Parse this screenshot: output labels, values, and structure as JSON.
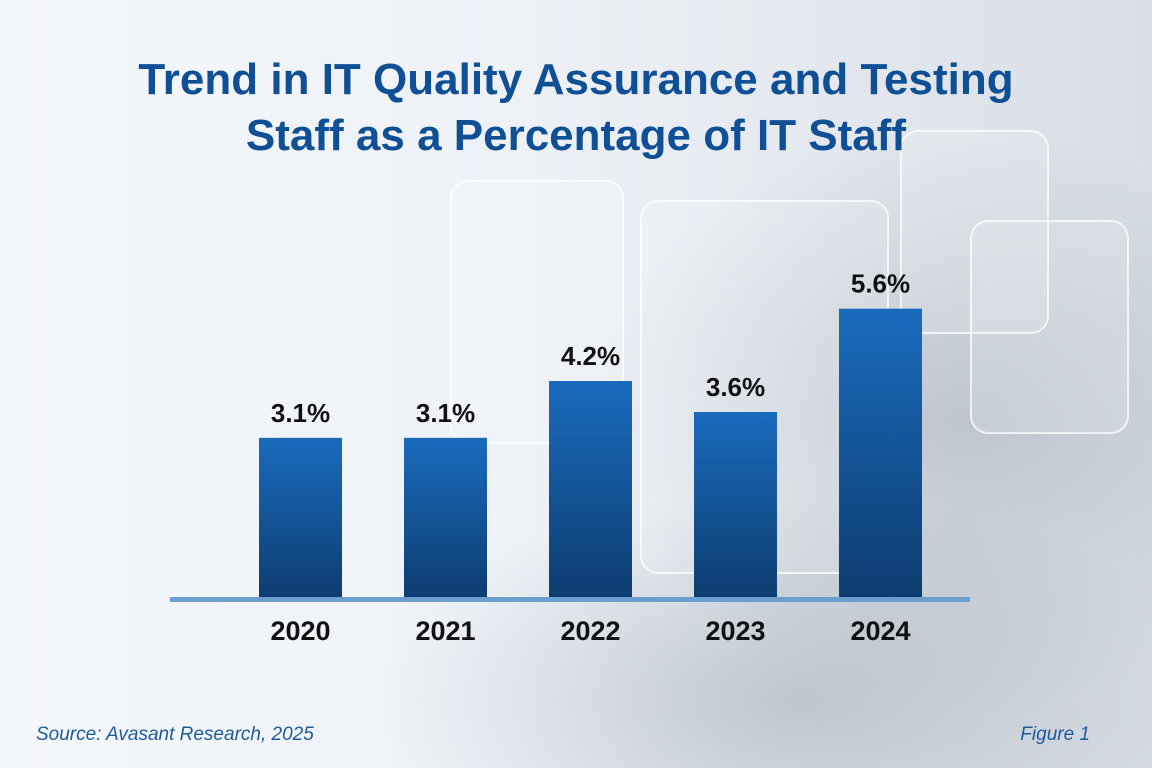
{
  "chart_data": {
    "type": "bar",
    "title": "Trend in IT Quality Assurance and Testing Staff as a Percentage of IT Staff",
    "categories": [
      "2020",
      "2021",
      "2022",
      "2023",
      "2024"
    ],
    "values": [
      3.1,
      3.1,
      4.2,
      3.6,
      5.6
    ],
    "data_labels": [
      "3.1%",
      "3.1%",
      "4.2%",
      "3.6%",
      "5.6%"
    ],
    "unit": "%",
    "xlabel": "",
    "ylabel": "",
    "ylim": [
      0,
      6
    ],
    "grid": false,
    "legend": "none",
    "colors": {
      "bar_top": "#1a6bbd",
      "bar_bottom": "#0d3d70",
      "baseline": "#6a9fd0",
      "title": "#0f4f96"
    }
  },
  "footer": {
    "source": "Source: Avasant Research, 2025",
    "figure": "Figure 1"
  }
}
